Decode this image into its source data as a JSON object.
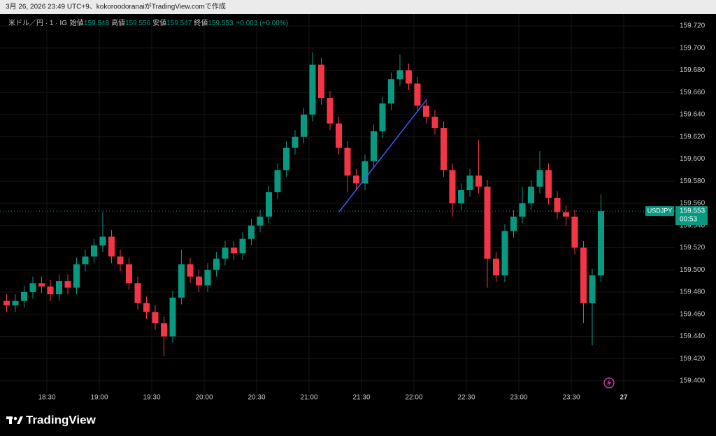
{
  "header": {
    "caption": "3月 26, 2026 23:49 UTC+9、kokoroodoranaiがTradingView.comで作成"
  },
  "chart_data": {
    "type": "candlestick",
    "title": "米ドル／円 · 1 · IG",
    "ohlc_header": {
      "open_label": "始値",
      "open": 159.548,
      "high_label": "高値",
      "high": 159.556,
      "low_label": "安値",
      "low": 159.547,
      "close_label": "終値",
      "close": 159.553,
      "change": "+0.003 (+0.00%)"
    },
    "x": [
      1087,
      1092,
      1097,
      1102,
      1107,
      1112,
      1117,
      1122,
      1127,
      1132,
      1137,
      1142,
      1147,
      1152,
      1157,
      1162,
      1167,
      1172,
      1177,
      1182,
      1187,
      1192,
      1197,
      1202,
      1207,
      1212,
      1217,
      1222,
      1227,
      1232,
      1237,
      1242,
      1247,
      1252,
      1257,
      1262,
      1267,
      1272,
      1277,
      1282,
      1287,
      1292,
      1297,
      1302,
      1307,
      1312,
      1317,
      1322,
      1327,
      1332,
      1337,
      1342,
      1347,
      1352,
      1357,
      1362,
      1367,
      1372,
      1377,
      1382,
      1387,
      1392,
      1397,
      1402,
      1407,
      1412,
      1417,
      1422,
      1427
    ],
    "open": [
      159.472,
      159.468,
      159.472,
      159.48,
      159.488,
      159.485,
      159.478,
      159.49,
      159.484,
      159.505,
      159.512,
      159.522,
      159.53,
      159.512,
      159.505,
      159.488,
      159.47,
      159.462,
      159.452,
      159.44,
      159.475,
      159.505,
      159.494,
      159.486,
      159.5,
      159.51,
      159.52,
      159.515,
      159.528,
      159.54,
      159.548,
      159.57,
      159.59,
      159.61,
      159.62,
      159.64,
      159.685,
      159.655,
      159.632,
      159.61,
      159.585,
      159.578,
      159.598,
      159.625,
      159.65,
      159.672,
      159.68,
      159.668,
      159.648,
      159.638,
      159.628,
      159.59,
      159.56,
      159.572,
      159.585,
      159.575,
      159.51,
      159.495,
      159.535,
      159.548,
      159.56,
      159.575,
      159.59,
      159.565,
      159.552,
      159.548,
      159.52,
      159.47,
      159.495
    ],
    "high": [
      159.478,
      159.478,
      159.486,
      159.494,
      159.494,
      159.491,
      159.496,
      159.496,
      159.511,
      159.518,
      159.528,
      159.552,
      159.536,
      159.518,
      159.511,
      159.494,
      159.476,
      159.468,
      159.458,
      159.481,
      159.518,
      159.511,
      159.5,
      159.506,
      159.516,
      159.526,
      159.526,
      159.534,
      159.546,
      159.554,
      159.576,
      159.596,
      159.616,
      159.626,
      159.646,
      159.696,
      159.691,
      159.661,
      159.638,
      159.616,
      159.591,
      159.604,
      159.631,
      159.656,
      159.678,
      159.694,
      159.686,
      159.674,
      159.654,
      159.644,
      159.634,
      159.596,
      159.578,
      159.591,
      159.617,
      159.581,
      159.516,
      159.541,
      159.554,
      159.575,
      159.581,
      159.607,
      159.596,
      159.571,
      159.558,
      159.554,
      159.526,
      159.501,
      159.568
    ],
    "low": [
      159.462,
      159.462,
      159.466,
      159.474,
      159.479,
      159.472,
      159.472,
      159.478,
      159.478,
      159.499,
      159.506,
      159.516,
      159.506,
      159.499,
      159.482,
      159.464,
      159.456,
      159.446,
      159.422,
      159.434,
      159.469,
      159.488,
      159.48,
      159.48,
      159.494,
      159.504,
      159.509,
      159.509,
      159.522,
      159.534,
      159.542,
      159.564,
      159.584,
      159.604,
      159.614,
      159.634,
      159.649,
      159.626,
      159.604,
      159.57,
      159.572,
      159.572,
      159.592,
      159.619,
      159.644,
      159.666,
      159.662,
      159.642,
      159.632,
      159.622,
      159.584,
      159.548,
      159.554,
      159.566,
      159.569,
      159.484,
      159.489,
      159.489,
      159.529,
      159.542,
      159.554,
      159.569,
      159.559,
      159.546,
      159.54,
      159.514,
      159.452,
      159.432,
      159.489
    ],
    "close": [
      159.468,
      159.472,
      159.48,
      159.488,
      159.485,
      159.478,
      159.49,
      159.484,
      159.505,
      159.512,
      159.522,
      159.53,
      159.512,
      159.505,
      159.488,
      159.47,
      159.462,
      159.452,
      159.44,
      159.475,
      159.505,
      159.494,
      159.486,
      159.5,
      159.51,
      159.52,
      159.515,
      159.528,
      159.54,
      159.548,
      159.57,
      159.59,
      159.61,
      159.62,
      159.64,
      159.685,
      159.655,
      159.632,
      159.61,
      159.585,
      159.578,
      159.598,
      159.625,
      159.65,
      159.672,
      159.68,
      159.668,
      159.648,
      159.638,
      159.628,
      159.59,
      159.56,
      159.572,
      159.585,
      159.575,
      159.51,
      159.495,
      159.535,
      159.548,
      159.56,
      159.575,
      159.59,
      159.565,
      159.552,
      159.548,
      159.52,
      159.47,
      159.495,
      159.553
    ],
    "up_color": "#089981",
    "down_color": "#f23645",
    "xlim": [
      1083.2,
      1469.2
    ],
    "xticks": [
      {
        "value": 1110,
        "label": "18:30"
      },
      {
        "value": 1140,
        "label": "19:00"
      },
      {
        "value": 1170,
        "label": "19:30"
      },
      {
        "value": 1200,
        "label": "20:00"
      },
      {
        "value": 1230,
        "label": "20:30"
      },
      {
        "value": 1260,
        "label": "21:00"
      },
      {
        "value": 1290,
        "label": "21:30"
      },
      {
        "value": 1320,
        "label": "22:00"
      },
      {
        "value": 1350,
        "label": "22:30"
      },
      {
        "value": 1380,
        "label": "23:00"
      },
      {
        "value": 1410,
        "label": "23:30"
      },
      {
        "value": 1440,
        "label": "27"
      }
    ],
    "ylim": [
      159.3792,
      159.7307
    ],
    "yticks": [
      {
        "value": 159.4,
        "label": "159.400"
      },
      {
        "value": 159.42,
        "label": "159.420"
      },
      {
        "value": 159.44,
        "label": "159.440"
      },
      {
        "value": 159.46,
        "label": "159.460"
      },
      {
        "value": 159.48,
        "label": "159.480"
      },
      {
        "value": 159.5,
        "label": "159.500"
      },
      {
        "value": 159.52,
        "label": "159.520"
      },
      {
        "value": 159.54,
        "label": "159.540"
      },
      {
        "value": 159.56,
        "label": "159.560"
      },
      {
        "value": 159.58,
        "label": "159.580"
      },
      {
        "value": 159.6,
        "label": "159.600"
      },
      {
        "value": 159.62,
        "label": "159.620"
      },
      {
        "value": 159.64,
        "label": "159.640"
      },
      {
        "value": 159.66,
        "label": "159.660"
      },
      {
        "value": 159.68,
        "label": "159.680"
      },
      {
        "value": 159.7,
        "label": "159.700"
      },
      {
        "value": 159.72,
        "label": "159.720"
      }
    ],
    "grid": true,
    "last_price": {
      "symbol": "USDJPY",
      "value": 159.553,
      "countdown": "00:53",
      "color": "#089981"
    },
    "trendline": {
      "x": [
        1277,
        1327
      ],
      "y": [
        159.552,
        159.653
      ],
      "color": "#3d5afe"
    }
  },
  "footer": {
    "brand": "TradingView"
  }
}
